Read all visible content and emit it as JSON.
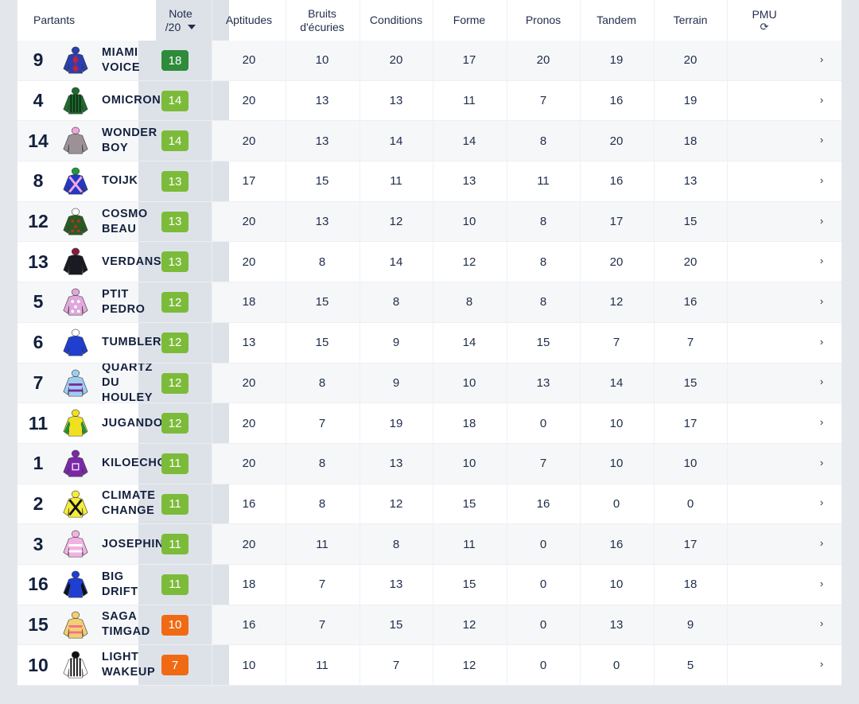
{
  "header": {
    "partants": "Partants",
    "note_line1": "Note",
    "note_line2": "/20",
    "columns": [
      {
        "line1": "Aptitudes",
        "line2": ""
      },
      {
        "line1": "Bruits",
        "line2": "d'écuries"
      },
      {
        "line1": "Conditions",
        "line2": ""
      },
      {
        "line1": "Forme",
        "line2": ""
      },
      {
        "line1": "Pronos",
        "line2": ""
      },
      {
        "line1": "Tandem",
        "line2": ""
      },
      {
        "line1": "Terrain",
        "line2": ""
      },
      {
        "line1": "PMU",
        "line2": "⟳"
      }
    ]
  },
  "colors": {
    "badge_top": "#2e8b3a",
    "badge_good": "#7cbb3a",
    "badge_mid": "#f06a14",
    "note_column_bg": "#dde2e8",
    "text": "#1f2d4a"
  },
  "rows": [
    {
      "num": "9",
      "name": "MIAMI\nVOICE",
      "note": "18",
      "tier": "top",
      "silk": {
        "body": "#2a3fb0",
        "accent": "#c8203a",
        "cap": "#2a3fb0",
        "icon": "silk-diamonds-icon"
      },
      "values": [
        "20",
        "10",
        "20",
        "17",
        "20",
        "19",
        "20"
      ],
      "chevron": "›"
    },
    {
      "num": "4",
      "name": "OMICRONE",
      "note": "14",
      "tier": "good",
      "silk": {
        "body": "#1f6b2d",
        "accent": "#0b3016",
        "cap": "#1f6b2d",
        "icon": "silk-stripes-icon"
      },
      "values": [
        "20",
        "13",
        "13",
        "11",
        "7",
        "16",
        "19"
      ],
      "chevron": "›"
    },
    {
      "num": "14",
      "name": "WONDER\nBOY",
      "note": "14",
      "tier": "good",
      "silk": {
        "body": "#9b9196",
        "accent": "#e4b5d8",
        "cap": "#f0a6dc",
        "icon": "silk-plain-icon"
      },
      "values": [
        "20",
        "13",
        "14",
        "14",
        "8",
        "20",
        "18"
      ],
      "chevron": "›"
    },
    {
      "num": "8",
      "name": "TOIJK",
      "note": "13",
      "tier": "good",
      "silk": {
        "body": "#2438c4",
        "accent": "#f2a8e0",
        "cap": "#1f9a3a",
        "icon": "silk-cross-icon"
      },
      "values": [
        "17",
        "15",
        "11",
        "13",
        "11",
        "16",
        "13"
      ],
      "chevron": "›"
    },
    {
      "num": "12",
      "name": "COSMO\nBEAU",
      "note": "13",
      "tier": "good",
      "silk": {
        "body": "#2a5a22",
        "accent": "#b3342a",
        "cap": "#ffffff",
        "icon": "silk-spots-icon"
      },
      "values": [
        "20",
        "13",
        "12",
        "10",
        "8",
        "17",
        "15"
      ],
      "chevron": "›"
    },
    {
      "num": "13",
      "name": "VERDANSK",
      "note": "13",
      "tier": "good",
      "silk": {
        "body": "#1a1a22",
        "accent": "#8b1a3a",
        "cap": "#8b1a3a",
        "icon": "silk-plain-icon"
      },
      "values": [
        "20",
        "8",
        "14",
        "12",
        "8",
        "20",
        "20"
      ],
      "chevron": "›"
    },
    {
      "num": "5",
      "name": "PTIT\nPEDRO",
      "note": "12",
      "tier": "good",
      "silk": {
        "body": "#e0a8dc",
        "accent": "#ffffff",
        "cap": "#e0a8dc",
        "icon": "silk-spots-icon"
      },
      "values": [
        "18",
        "15",
        "8",
        "8",
        "8",
        "12",
        "16"
      ],
      "chevron": "›"
    },
    {
      "num": "6",
      "name": "TUMBLER",
      "note": "12",
      "tier": "good",
      "silk": {
        "body": "#1f3fd0",
        "accent": "#1f3fd0",
        "cap": "#ffffff",
        "icon": "silk-plain-icon"
      },
      "values": [
        "13",
        "15",
        "9",
        "14",
        "15",
        "7",
        "7"
      ],
      "chevron": "›"
    },
    {
      "num": "7",
      "name": "QUARTZ\nDU\nHOULEY",
      "note": "12",
      "tier": "good",
      "silk": {
        "body": "#9ecdf0",
        "accent": "#7b2a9c",
        "cap": "#9ecdf0",
        "icon": "silk-hoops-icon"
      },
      "values": [
        "20",
        "8",
        "9",
        "10",
        "13",
        "14",
        "15"
      ],
      "chevron": "›"
    },
    {
      "num": "11",
      "name": "JUGANDO",
      "note": "12",
      "tier": "good",
      "silk": {
        "body": "#f0e020",
        "accent": "#1f8f3a",
        "cap": "#f0e020",
        "icon": "silk-sleeves-icon"
      },
      "values": [
        "20",
        "7",
        "19",
        "18",
        "0",
        "10",
        "17"
      ],
      "chevron": "›"
    },
    {
      "num": "1",
      "name": "KILOECHO",
      "note": "11",
      "tier": "good",
      "silk": {
        "body": "#7a2aa8",
        "accent": "#f0e0ff",
        "cap": "#7a2aa8",
        "icon": "silk-square-icon"
      },
      "values": [
        "20",
        "8",
        "13",
        "10",
        "7",
        "10",
        "10"
      ],
      "chevron": "›"
    },
    {
      "num": "2",
      "name": "CLIMATE\nCHANGE",
      "note": "11",
      "tier": "good",
      "silk": {
        "body": "#f4ec3a",
        "accent": "#111111",
        "cap": "#f4ec3a",
        "icon": "silk-cross-icon"
      },
      "values": [
        "16",
        "8",
        "12",
        "15",
        "16",
        "0",
        "0"
      ],
      "chevron": "›"
    },
    {
      "num": "3",
      "name": "JOSEPHINE",
      "note": "11",
      "tier": "good",
      "silk": {
        "body": "#f2b2e4",
        "accent": "#ffffff",
        "cap": "#f2b2e4",
        "icon": "silk-hoops-icon"
      },
      "values": [
        "20",
        "11",
        "8",
        "11",
        "0",
        "16",
        "17"
      ],
      "chevron": "›"
    },
    {
      "num": "16",
      "name": "BIG\nDRIFT",
      "note": "11",
      "tier": "good",
      "silk": {
        "body": "#1f3fd0",
        "accent": "#111111",
        "cap": "#1f3fd0",
        "icon": "silk-sleeves-icon"
      },
      "values": [
        "18",
        "7",
        "13",
        "15",
        "0",
        "10",
        "18"
      ],
      "chevron": "›"
    },
    {
      "num": "15",
      "name": "SAGA\nTIMGAD",
      "note": "10",
      "tier": "mid",
      "silk": {
        "body": "#f2d070",
        "accent": "#f07090",
        "cap": "#f2d070",
        "icon": "silk-hoops-icon"
      },
      "values": [
        "16",
        "7",
        "15",
        "12",
        "0",
        "13",
        "9"
      ],
      "chevron": "›"
    },
    {
      "num": "10",
      "name": "LIGHT\nWAKEUP",
      "note": "7",
      "tier": "mid",
      "silk": {
        "body": "#ffffff",
        "accent": "#111111",
        "cap": "#111111",
        "icon": "silk-stripes-icon"
      },
      "values": [
        "10",
        "11",
        "7",
        "12",
        "0",
        "0",
        "5"
      ],
      "chevron": "›"
    }
  ]
}
